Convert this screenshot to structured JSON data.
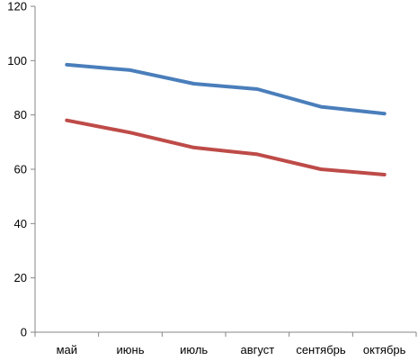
{
  "chart_data": {
    "type": "line",
    "categories": [
      "май",
      "июнь",
      "июль",
      "август",
      "сентябрь",
      "октябрь"
    ],
    "series": [
      {
        "values": [
          98.5,
          96.5,
          91.5,
          89.5,
          83,
          80.5
        ],
        "color": "#4a7ebb"
      },
      {
        "values": [
          78,
          73.5,
          68,
          65.5,
          60,
          58
        ],
        "color": "#be4b48"
      }
    ],
    "ylim": [
      0,
      120
    ],
    "yticks": [
      0,
      20,
      40,
      60,
      80,
      100,
      120
    ],
    "xlabel": "",
    "ylabel": "",
    "title": "",
    "grid": false,
    "legend": "none"
  }
}
